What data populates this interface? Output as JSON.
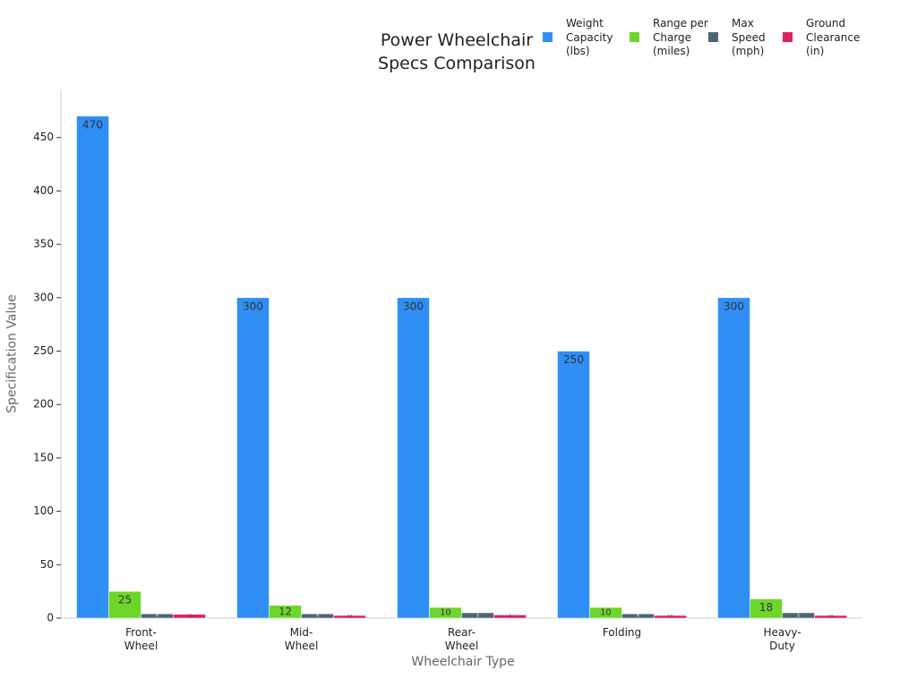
{
  "chart_data": {
    "type": "bar",
    "title": "Power Wheelchair Specs Comparison",
    "x_label": "Wheelchair Type",
    "y_label": "Specification Value",
    "categories": [
      "Front-Wheel",
      "Mid-Wheel",
      "Rear-Wheel",
      "Folding",
      "Heavy-Duty"
    ],
    "series": [
      {
        "name": "Weight Capacity (lbs)",
        "color": "#2f8ff5",
        "values": [
          470,
          300,
          300,
          250,
          300
        ]
      },
      {
        "name": "Range per Charge (miles)",
        "color": "#6dd62a",
        "values": [
          25,
          12,
          10,
          10,
          18
        ]
      },
      {
        "name": "Max Speed (mph)",
        "color": "#4e6575",
        "values": [
          4,
          4,
          5,
          4,
          5
        ]
      },
      {
        "name": "Ground Clearance (in)",
        "color": "#e0215f",
        "values": [
          3.5,
          2.5,
          3,
          2.5,
          2.5
        ]
      }
    ],
    "ylim": [
      0,
      495
    ],
    "yticks": [
      0,
      50,
      100,
      150,
      200,
      250,
      300,
      350,
      400,
      450
    ],
    "grid": false
  }
}
